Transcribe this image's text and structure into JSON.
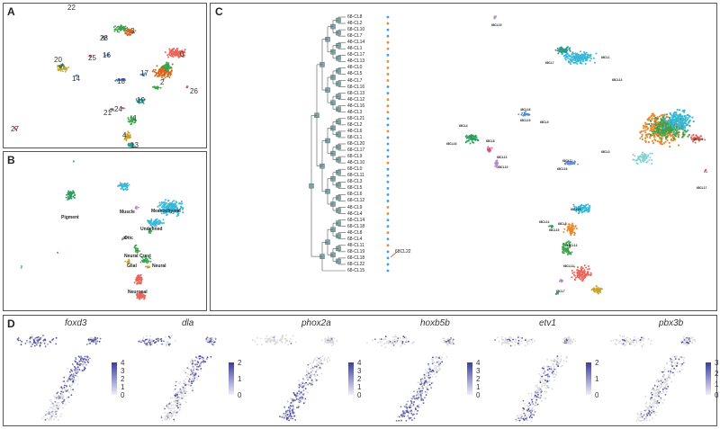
{
  "panel_labels": {
    "a": "A",
    "b": "B",
    "c": "C",
    "d": "D"
  },
  "panel_a": {
    "cluster_labels": [
      "22",
      "23",
      "3",
      "25",
      "16",
      "0",
      "20",
      "14",
      "17",
      "18",
      "2",
      "26",
      "19",
      "21",
      "24",
      "1",
      "27",
      "4",
      "13"
    ],
    "colors": [
      "#7a7a7a",
      "#6a3d9a",
      "#d7651f",
      "#c9a227",
      "#2a9c8c",
      "#e8675a",
      "#4f8ad6",
      "#3aa24a"
    ]
  },
  "panel_b": {
    "cell_type_labels": [
      "Muscle",
      "Pigment",
      "Mesenchymal",
      "Undefined",
      "Otic",
      "Neural Crest",
      "Glial",
      "Neural",
      "Neuronal"
    ],
    "colors": {
      "muscle": "#b58acb",
      "pigment": "#2a9c5a",
      "mesenchymal": "#38b8d8",
      "neuronal": "#e8675a",
      "glial": "#c9a227",
      "neural": "#2aa84a",
      "neural_crest": "#8bc34a"
    }
  },
  "panel_c": {
    "dendrogram_leaves": [
      "68-CL8",
      "48-CL2",
      "68-CL10",
      "68-CL7",
      "48-CL14",
      "48-CL1",
      "68-CL17",
      "48-CL13",
      "48-CL0",
      "48-CL5",
      "48-CL7",
      "68-CL16",
      "68-CL13",
      "48-CL12",
      "48-CL16",
      "48-CL3",
      "68-CL21",
      "68-CL2",
      "48-CL6",
      "68-CL1",
      "68-CL20",
      "68-CL17",
      "68-CL9",
      "48-CL10",
      "68-CL0",
      "68-CL11",
      "68-CL3",
      "68-CL5",
      "68-CL6",
      "68-CL12",
      "48-CL9",
      "48-CL4",
      "68-CL14",
      "68-CL18",
      "48-CL8",
      "68-CL4",
      "48-CL11",
      "68-CL19",
      "68-CL18",
      "68-CL22",
      "68-CL15"
    ],
    "leaf_colors": [
      "#3aa0e0",
      "#e68a2e",
      "#3aa0e0",
      "#3aa0e0",
      "#e68a2e",
      "#e68a2e",
      "#3aa0e0",
      "#e68a2e",
      "#e68a2e",
      "#e68a2e",
      "#e68a2e",
      "#3aa0e0",
      "#3aa0e0",
      "#e68a2e",
      "#e68a2e",
      "#e68a2e",
      "#3aa0e0",
      "#3aa0e0",
      "#e68a2e",
      "#3aa0e0",
      "#3aa0e0",
      "#3aa0e0",
      "#3aa0e0",
      "#e68a2e",
      "#3aa0e0",
      "#3aa0e0",
      "#3aa0e0",
      "#3aa0e0",
      "#3aa0e0",
      "#3aa0e0",
      "#e68a2e",
      "#e68a2e",
      "#3aa0e0",
      "#3aa0e0",
      "#e68a2e",
      "#3aa0e0",
      "#e68a2e",
      "#3aa0e0",
      "#3aa0e0",
      "#3aa0e0",
      "#3aa0e0"
    ],
    "umap_labels": [
      "68CL15",
      "68CL7",
      "68CL1",
      "68CL14",
      "48CL18",
      "68CL19",
      "68CL9",
      "68CL4",
      "68CL8",
      "68CL16",
      "68CL13",
      "68CL10",
      "68CL11",
      "68CL16",
      "68CL3",
      "48CL20",
      "68CL17",
      "68CL5",
      "68CL10",
      "68CL14",
      "68CL15",
      "68CL13",
      "68CL12",
      "68CL7",
      "68CL22"
    ]
  },
  "panel_d": {
    "genes": [
      {
        "name": "foxd3",
        "ticks": [
          "4",
          "3",
          "2",
          "1",
          "0"
        ]
      },
      {
        "name": "dla",
        "ticks": [
          "2",
          "1",
          "0"
        ]
      },
      {
        "name": "phox2a",
        "ticks": [
          "4",
          "3",
          "2",
          "1",
          "0"
        ]
      },
      {
        "name": "hoxb5b",
        "ticks": [
          "4",
          "3",
          "2",
          "1",
          "0"
        ]
      },
      {
        "name": "etv1",
        "ticks": [
          "2",
          "1",
          "0"
        ]
      },
      {
        "name": "pbx3b",
        "ticks": [
          "3",
          "2",
          "1",
          "0"
        ]
      }
    ],
    "low_color": "#d9d9d9",
    "high_color": "#3b3c9e"
  }
}
